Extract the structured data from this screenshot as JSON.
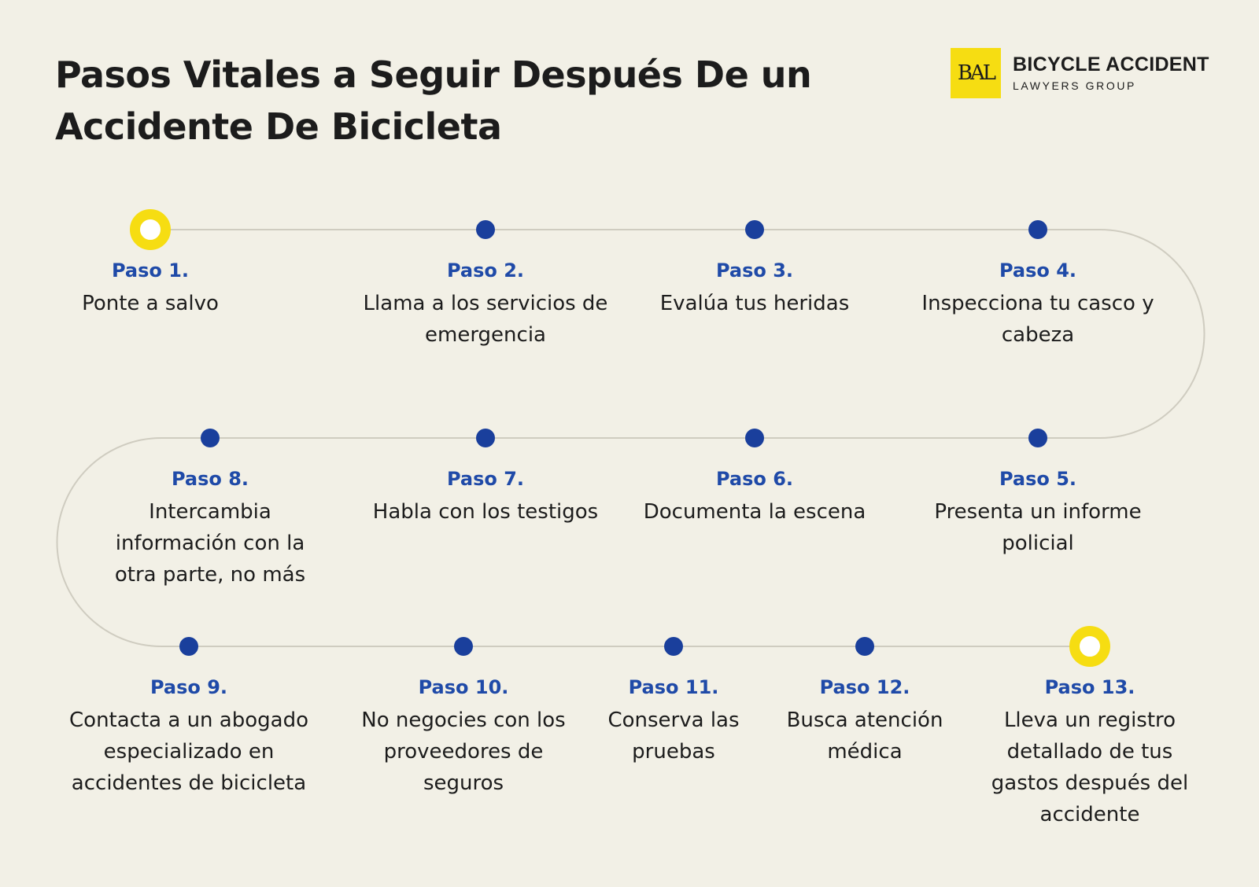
{
  "title": "Pasos Vitales a Seguir Después De un Accidente De Bicicleta",
  "brand": {
    "mark": "BAL",
    "name": "BICYCLE ACCIDENT",
    "subtitle": "LAWYERS GROUP"
  },
  "colors": {
    "background": "#f2f0e6",
    "accent_yellow": "#f6dd12",
    "dot_blue": "#1a3f9c",
    "step_title_blue": "#1f4aa8",
    "line": "#cfccc0"
  },
  "steps": [
    {
      "title": "Paso 1.",
      "text": "Ponte a salvo",
      "marker": "ring"
    },
    {
      "title": "Paso 2.",
      "text": "Llama a los servicios de emergencia",
      "marker": "dot"
    },
    {
      "title": "Paso 3.",
      "text": "Evalúa tus heridas",
      "marker": "dot"
    },
    {
      "title": "Paso 4.",
      "text": "Inspecciona tu casco y cabeza",
      "marker": "dot"
    },
    {
      "title": "Paso 5.",
      "text": "Presenta un informe policial",
      "marker": "dot"
    },
    {
      "title": "Paso 6.",
      "text": "Documenta la escena",
      "marker": "dot"
    },
    {
      "title": "Paso 7.",
      "text": "Habla con los testigos",
      "marker": "dot"
    },
    {
      "title": "Paso 8.",
      "text": "Intercambia información con la otra parte, no más",
      "marker": "dot"
    },
    {
      "title": "Paso 9.",
      "text": "Contacta a un abogado especializado en accidentes de bicicleta",
      "marker": "dot"
    },
    {
      "title": "Paso 10.",
      "text": "No negocies con los proveedores de seguros",
      "marker": "dot"
    },
    {
      "title": "Paso 11.",
      "text": "Conserva las pruebas",
      "marker": "dot"
    },
    {
      "title": "Paso 12.",
      "text": "Busca atención médica",
      "marker": "dot"
    },
    {
      "title": "Paso 13.",
      "text": "Lleva un registro detallado de tus gastos después del accidente",
      "marker": "ring"
    }
  ]
}
